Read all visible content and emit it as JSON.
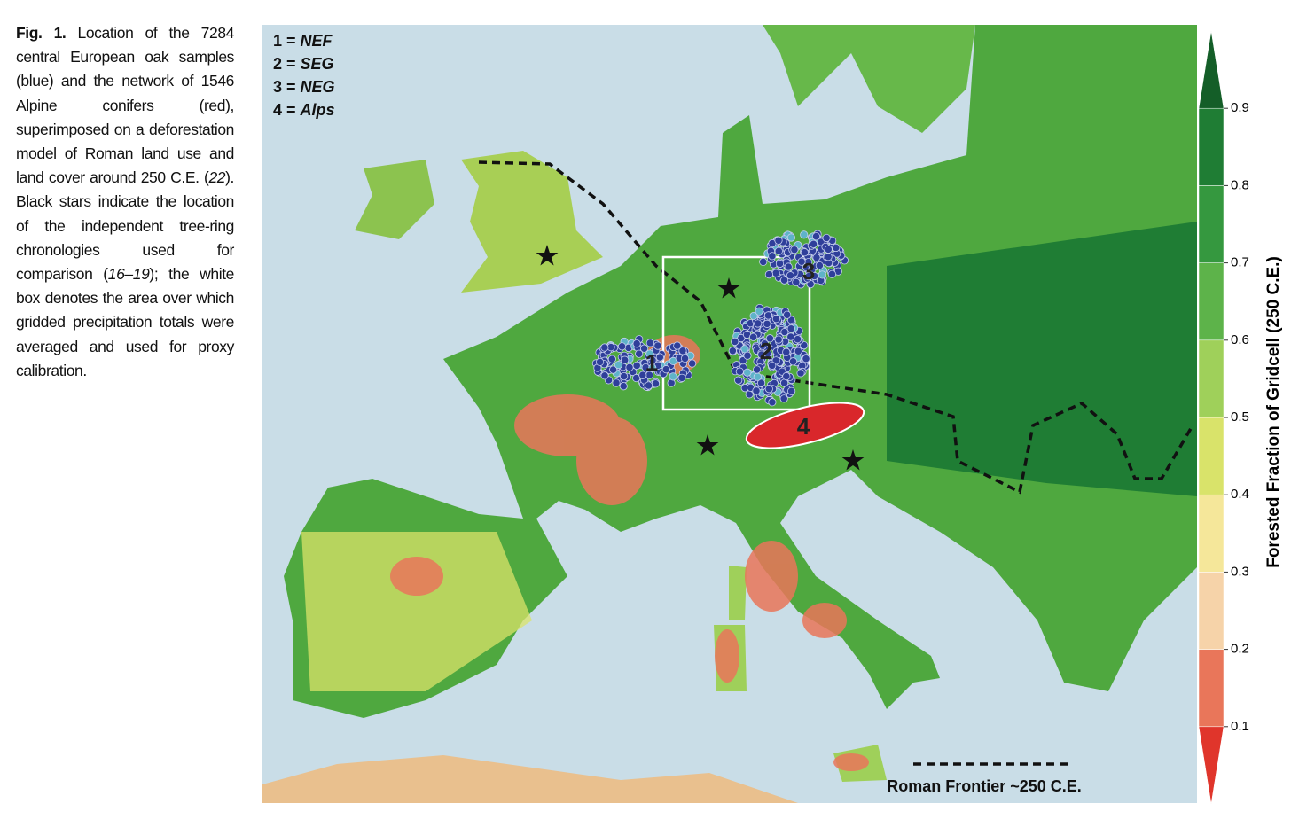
{
  "caption": {
    "label": "Fig. 1.",
    "parts": [
      {
        "text": "Location of the 7284 central European oak samples (blue) and the network of 1546 Alpine conifers (red), superimposed on a deforestation model of Roman land use and land cover around 250 C.E. ("
      },
      {
        "text": "22",
        "italic": true
      },
      {
        "text": "). Black stars indicate the location of the independent tree-ring chronologies used for comparison ("
      },
      {
        "text": "16–19",
        "italic": true
      },
      {
        "text": "); the white box denotes the area over which gridded precipitation totals were averaged and used for proxy calibration."
      }
    ]
  },
  "map": {
    "legend": [
      {
        "key": "1 =",
        "name": "NEF"
      },
      {
        "key": "2 =",
        "name": "SEG"
      },
      {
        "key": "3 =",
        "name": "NEG"
      },
      {
        "key": "4 =",
        "name": "Alps"
      }
    ],
    "regions": [
      "1",
      "2",
      "3",
      "4"
    ],
    "frontier_label": "Roman Frontier ~250 C.E."
  },
  "colorbar": {
    "label": "Forested Fraction of Gridcell (250 C.E.)",
    "lim": [
      0,
      1
    ],
    "ticks": [
      0.1,
      0.2,
      0.3,
      0.4,
      0.5,
      0.6,
      0.7,
      0.8,
      0.9
    ],
    "colors": [
      "#e0352b",
      "#e9765a",
      "#f6d3a9",
      "#f5e79a",
      "#d9e36a",
      "#9fd05a",
      "#5db34a",
      "#35983f",
      "#1f7d34",
      "#145e28"
    ]
  }
}
